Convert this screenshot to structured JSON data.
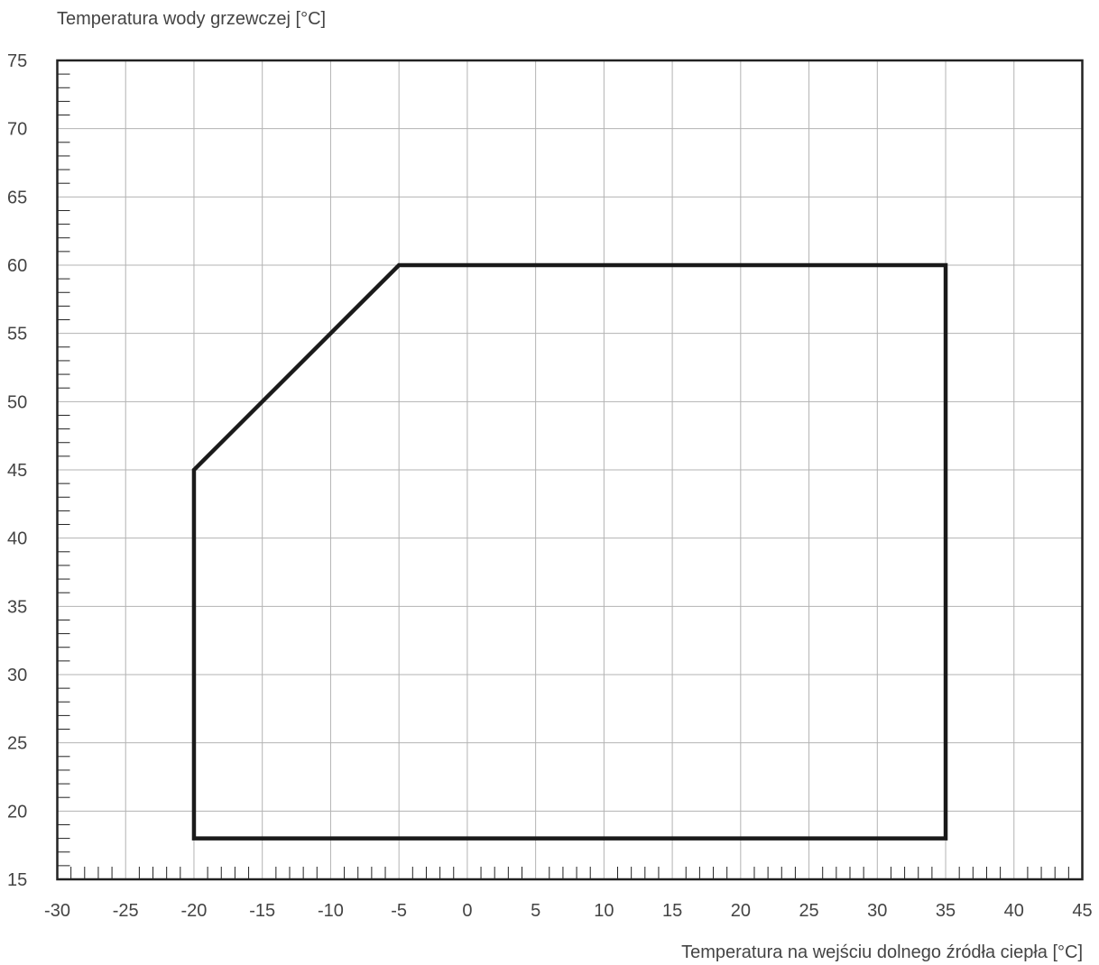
{
  "chart_data": {
    "type": "line",
    "title": "",
    "xlabel": "Temperatura na wejściu dolnego źródła ciepła [°C]",
    "ylabel": "Temperatura wody grzewczej [°C]",
    "xlim": [
      -30,
      45
    ],
    "ylim": [
      15,
      75
    ],
    "x_ticks": [
      -30,
      -25,
      -20,
      -15,
      -10,
      -5,
      0,
      5,
      10,
      15,
      20,
      25,
      30,
      35,
      40,
      45
    ],
    "y_ticks": [
      15,
      20,
      25,
      30,
      35,
      40,
      45,
      50,
      55,
      60,
      65,
      70,
      75
    ],
    "x_tick_labels": [
      "-30",
      "-25",
      "-20",
      "-15",
      "-10",
      "-5",
      "0",
      "5",
      "10",
      "15",
      "20",
      "25",
      "30",
      "35",
      "40",
      "45"
    ],
    "y_tick_labels": [
      "15",
      "20",
      "25",
      "30",
      "35",
      "40",
      "45",
      "50",
      "55",
      "60",
      "65",
      "70",
      "75"
    ],
    "minor_tick_step": 1,
    "grid": true,
    "series": [
      {
        "x": [
          -20,
          -20,
          -5,
          35,
          35,
          -20
        ],
        "y": [
          18,
          45,
          60,
          60,
          18,
          18
        ],
        "color": "#1a1a1a"
      }
    ],
    "colors": {
      "grid": "#b3b3b3",
      "frame": "#222222",
      "line": "#1a1a1a",
      "text": "#444444"
    }
  }
}
